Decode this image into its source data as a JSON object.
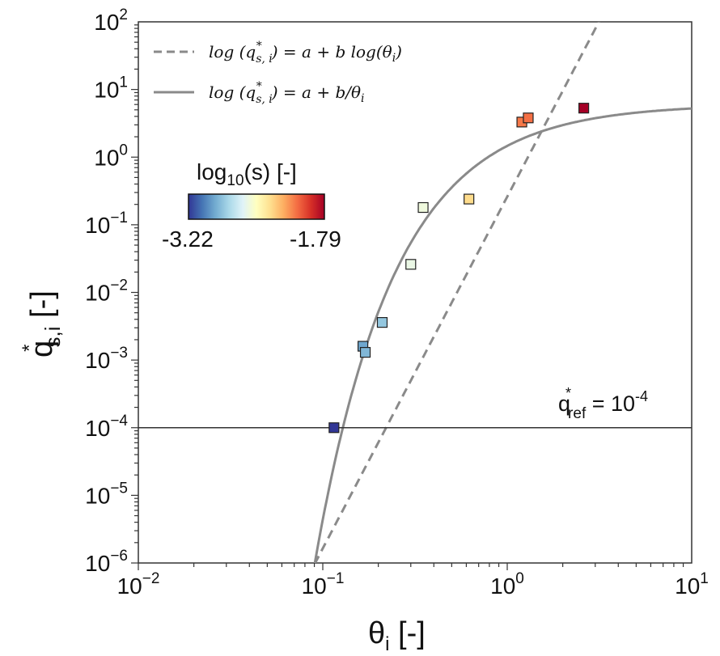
{
  "chart_data": {
    "type": "scatter",
    "x_scale": "log",
    "y_scale": "log",
    "xlim": [
      0.01,
      10
    ],
    "ylim": [
      1e-06,
      100
    ],
    "xlabel": {
      "base": "θ",
      "sub": "i",
      "unit": " [-]"
    },
    "ylabel": {
      "base": "q",
      "sup": "*",
      "sub": "s,i",
      "unit": " [-]"
    },
    "x_ticks": [
      {
        "value": 0.01,
        "base": "10",
        "exp": "−2"
      },
      {
        "value": 0.1,
        "base": "10",
        "exp": "−1"
      },
      {
        "value": 1,
        "base": "10",
        "exp": "0"
      },
      {
        "value": 10,
        "base": "10",
        "exp": "1"
      }
    ],
    "y_ticks": [
      {
        "value": 100,
        "base": "10",
        "exp": "2"
      },
      {
        "value": 10,
        "base": "10",
        "exp": "1"
      },
      {
        "value": 1,
        "base": "10",
        "exp": "0"
      },
      {
        "value": 0.1,
        "base": "10",
        "exp": "−1"
      },
      {
        "value": 0.01,
        "base": "10",
        "exp": "−2"
      },
      {
        "value": 0.001,
        "base": "10",
        "exp": "−3"
      },
      {
        "value": 0.0001,
        "base": "10",
        "exp": "−4"
      },
      {
        "value": 1e-05,
        "base": "10",
        "exp": "−5"
      },
      {
        "value": 1e-06,
        "base": "10",
        "exp": "−6"
      }
    ],
    "legend": {
      "position": "top-left",
      "entries": [
        {
          "style": "dashed",
          "label_lhs": "log (q",
          "label_sub": "s, i",
          "label_sup": "*",
          "label_rhs": ") = a + b log(θ",
          "label_end": ")",
          "label_end_sub": "i"
        },
        {
          "style": "solid",
          "label_lhs": "log (q",
          "label_sub": "s, i",
          "label_sup": "*",
          "label_rhs": ") = a + b/θ",
          "label_end": "",
          "label_end_sub": "i"
        }
      ]
    },
    "series": [
      {
        "type": "scatter",
        "marker": "square",
        "points": [
          {
            "x": 0.115,
            "y": 0.0001,
            "c": -3.22
          },
          {
            "x": 0.165,
            "y": 0.0016,
            "c": -2.95
          },
          {
            "x": 0.17,
            "y": 0.0013,
            "c": -2.9
          },
          {
            "x": 0.21,
            "y": 0.0036,
            "c": -2.85
          },
          {
            "x": 0.3,
            "y": 0.026,
            "c": -2.6
          },
          {
            "x": 0.35,
            "y": 0.18,
            "c": -2.58
          },
          {
            "x": 0.62,
            "y": 0.24,
            "c": -2.35
          },
          {
            "x": 1.2,
            "y": 3.3,
            "c": -2.1
          },
          {
            "x": 1.3,
            "y": 3.8,
            "c": -2.08
          },
          {
            "x": 2.6,
            "y": 5.3,
            "c": -1.79
          }
        ]
      },
      {
        "type": "line",
        "style": "dashed",
        "color": "#8a8a8a",
        "fit": "power",
        "a": 0.26,
        "b": 5.2
      },
      {
        "type": "line",
        "style": "solid",
        "color": "#8a8a8a",
        "fit": "reciprocal",
        "a": 0.78,
        "b": -0.614
      }
    ],
    "reference_line": {
      "y": 0.0001,
      "label_base": "q",
      "label_sup": "*",
      "label_sub": "ref",
      "label_rhs": " = 10",
      "label_exp": "-4",
      "color": "#333333"
    },
    "colorbar": {
      "title_pre": "log",
      "title_sub": "10",
      "title_post": "(s) [-]",
      "min": -3.22,
      "max": -1.79,
      "min_label": "-3.22",
      "max_label": "-1.79",
      "colormap": [
        "#313695",
        "#4575b4",
        "#74add1",
        "#abd9e9",
        "#e0f3f8",
        "#ffffbf",
        "#fee090",
        "#fdae61",
        "#f46d43",
        "#d73027",
        "#a50026"
      ]
    },
    "grid": false
  }
}
